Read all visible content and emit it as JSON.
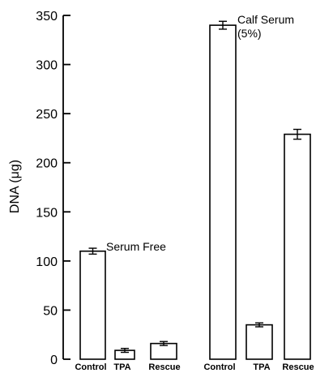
{
  "chart_data": {
    "type": "bar",
    "ylabel": "DNA (μg)",
    "ylim": [
      0,
      350
    ],
    "yticks": [
      0,
      50,
      100,
      150,
      200,
      250,
      300,
      350
    ],
    "groups": [
      {
        "label": "Serum Free",
        "categories": [
          "Control",
          "TPA",
          "Rescue"
        ],
        "values": [
          110,
          9,
          16
        ],
        "errors": [
          3,
          2,
          2
        ]
      },
      {
        "label_lines": [
          "Calf Serum",
          "(5%)"
        ],
        "categories": [
          "Control",
          "TPA",
          "Rescue"
        ],
        "values": [
          340,
          35,
          229
        ],
        "errors": [
          4,
          2,
          5
        ]
      }
    ]
  }
}
